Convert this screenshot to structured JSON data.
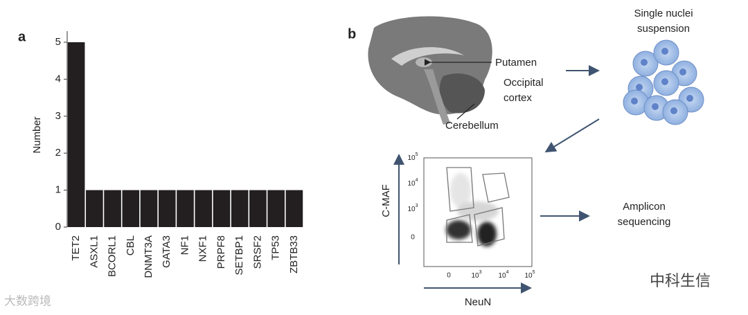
{
  "chart_data": {
    "type": "bar",
    "panel": "a",
    "y_label": "Number",
    "categories": [
      "TET2",
      "ASXL1",
      "BCORL1",
      "CBL",
      "DNMT3A",
      "GATA3",
      "NF1",
      "NXF1",
      "PRPF8",
      "SETBP1",
      "SRSF2",
      "TP53",
      "ZBTB33"
    ],
    "values": [
      5,
      1,
      1,
      1,
      1,
      1,
      1,
      1,
      1,
      1,
      1,
      1,
      1
    ],
    "color": "#231f20",
    "ylim": [
      0,
      5.3
    ],
    "yticks": [
      0,
      1,
      2,
      3,
      4,
      5
    ],
    "grid": false
  },
  "diagram": {
    "panel": "b",
    "putamen": "Putamen",
    "occipital": [
      "Occipital",
      "cortex"
    ],
    "cerebellum": "Cerebellum",
    "suspension": [
      "Single nuclei",
      "suspension"
    ],
    "sequencing": [
      "Amplicon",
      "sequencing"
    ],
    "flow": {
      "y_label": "C-MAF",
      "x_label": "NeuN",
      "yticks": [
        {
          "base": "10",
          "exp": "5"
        },
        {
          "base": "10",
          "exp": "4"
        },
        {
          "base": "10",
          "exp": "3"
        },
        "0"
      ],
      "xticks": [
        "0",
        {
          "base": "10",
          "exp": "3"
        },
        {
          "base": "10",
          "exp": "4"
        },
        {
          "base": "10",
          "exp": "5"
        }
      ]
    }
  },
  "watermarks": [
    "大数跨境",
    "中科生信"
  ]
}
